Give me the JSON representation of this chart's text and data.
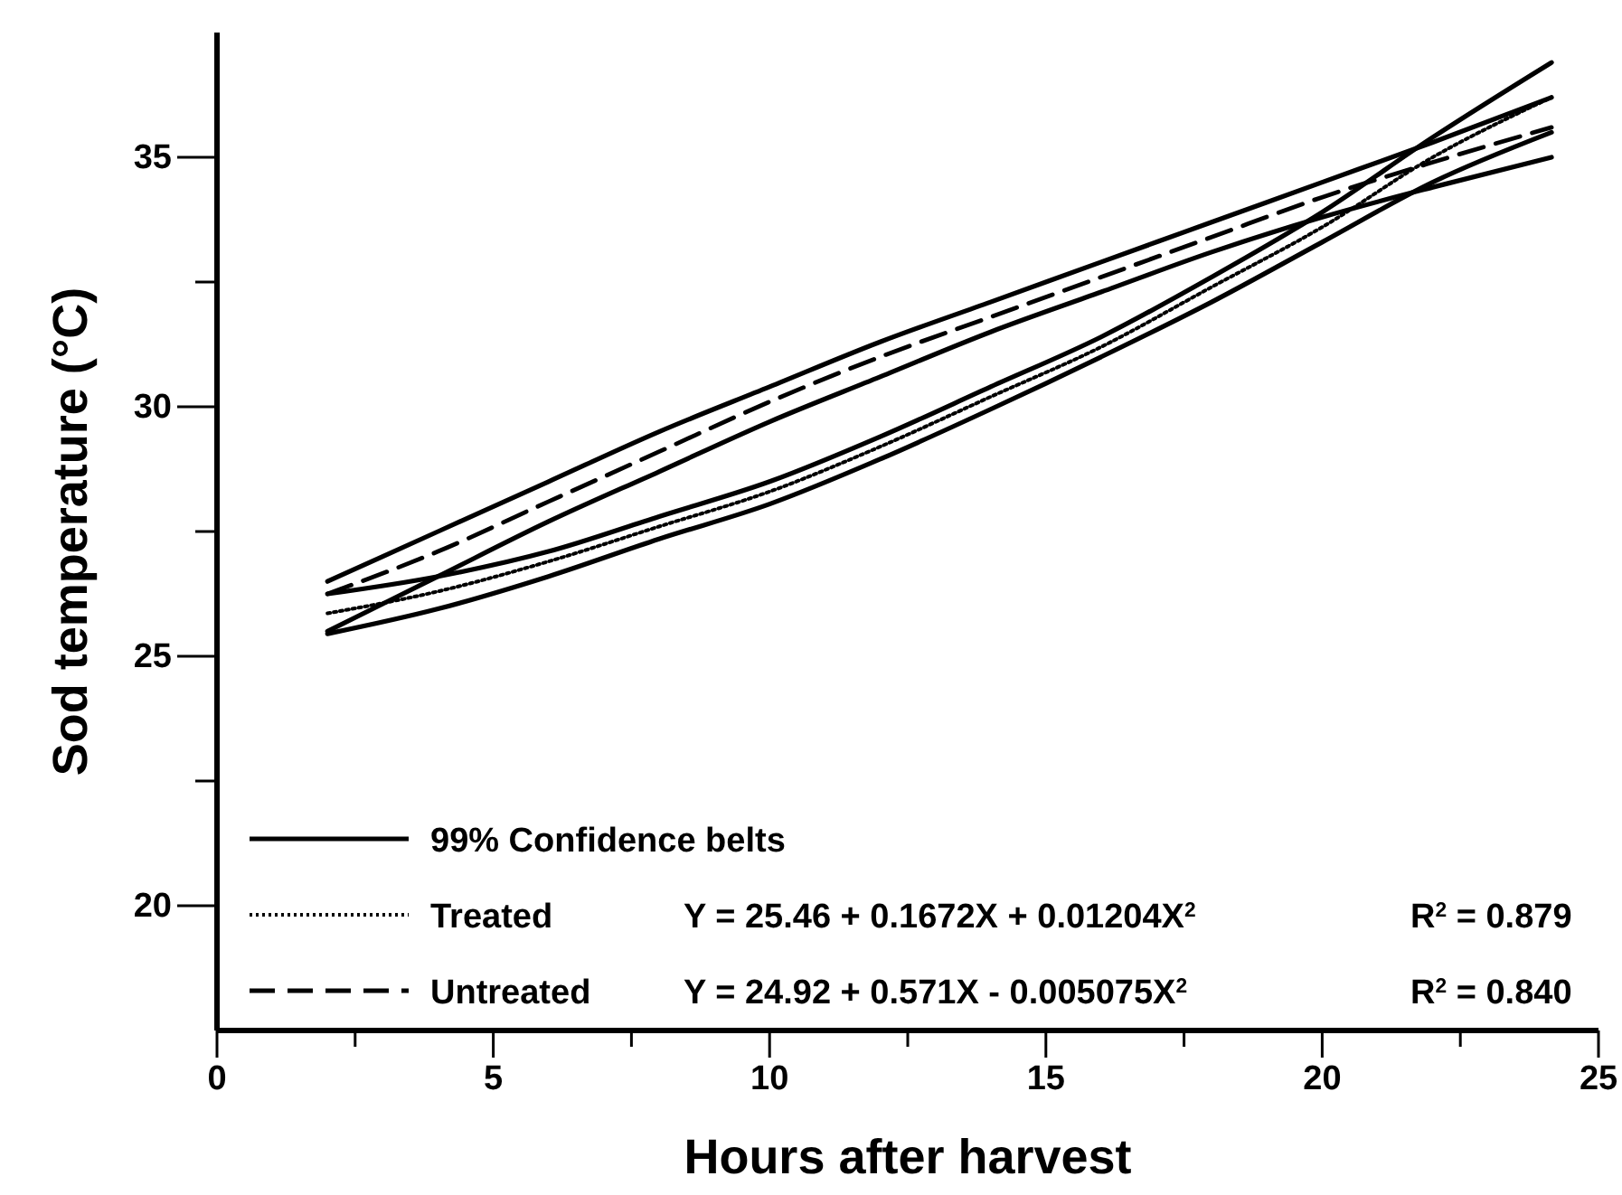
{
  "chart_data": {
    "type": "line",
    "xlabel": "Hours after harvest",
    "ylabel": "Sod temperature (°C)",
    "xlim": [
      0,
      25
    ],
    "ylim": [
      17.5,
      37.5
    ],
    "xticks": [
      0,
      {
        "value": 2.5,
        "label": null
      },
      5,
      {
        "value": 7.5,
        "label": null
      },
      10,
      {
        "value": 12.5,
        "label": null
      },
      15,
      {
        "value": 17.5,
        "label": null
      },
      20,
      {
        "value": 22.5,
        "label": null
      },
      25
    ],
    "yticks": [
      20,
      {
        "value": 22.5,
        "label": null
      },
      25,
      {
        "value": 27.5,
        "label": null
      },
      30,
      {
        "value": 32.5,
        "label": null
      },
      35
    ],
    "x": [
      2,
      4,
      6,
      8,
      10,
      12,
      14,
      16,
      18,
      20,
      22,
      24.15
    ],
    "legend": "bottom left",
    "series": [
      {
        "name": "99% Confidence belts",
        "color": "#000000",
        "line_style": "solid",
        "values": [
          26.25,
          26.6,
          27.1,
          27.8,
          28.5,
          29.4,
          30.4,
          31.4,
          32.6,
          33.9,
          35.4,
          36.9
        ]
      },
      {
        "name": "Treated",
        "color": "#000000",
        "line_style": "dotted",
        "values": [
          25.86,
          26.3,
          26.9,
          27.6,
          28.3,
          29.2,
          30.2,
          31.2,
          32.4,
          33.6,
          35.0,
          36.2
        ]
      },
      {
        "name": "Untreated",
        "color": "#000000",
        "line_style": "dashed",
        "values": [
          26.25,
          27.1,
          28.1,
          29.1,
          30.1,
          31.0,
          31.8,
          32.6,
          33.4,
          34.2,
          34.9,
          35.6
        ]
      },
      {
        "color": "#000000",
        "line_style": "solid",
        "values": [
          25.45,
          25.95,
          26.6,
          27.35,
          28.05,
          28.95,
          29.95,
          31.0,
          32.1,
          33.3,
          34.5,
          35.5
        ]
      },
      {
        "color": "#000000",
        "line_style": "solid",
        "values": [
          26.5,
          27.5,
          28.5,
          29.5,
          30.4,
          31.3,
          32.1,
          32.9,
          33.7,
          34.5,
          35.3,
          36.2
        ]
      },
      {
        "color": "#000000",
        "line_style": "solid",
        "values": [
          25.5,
          26.6,
          27.7,
          28.7,
          29.7,
          30.6,
          31.5,
          32.3,
          33.1,
          33.8,
          34.4,
          35.0
        ]
      }
    ],
    "annotations": [
      "Y = 25.46 + 0.1672X + 0.01204X$^{2}$",
      "R$^{2}$ = 0.879",
      "Y = 24.92 + 0.571X - 0.005075X$^{2}$",
      "R$^{2}$ = 0.840"
    ]
  }
}
